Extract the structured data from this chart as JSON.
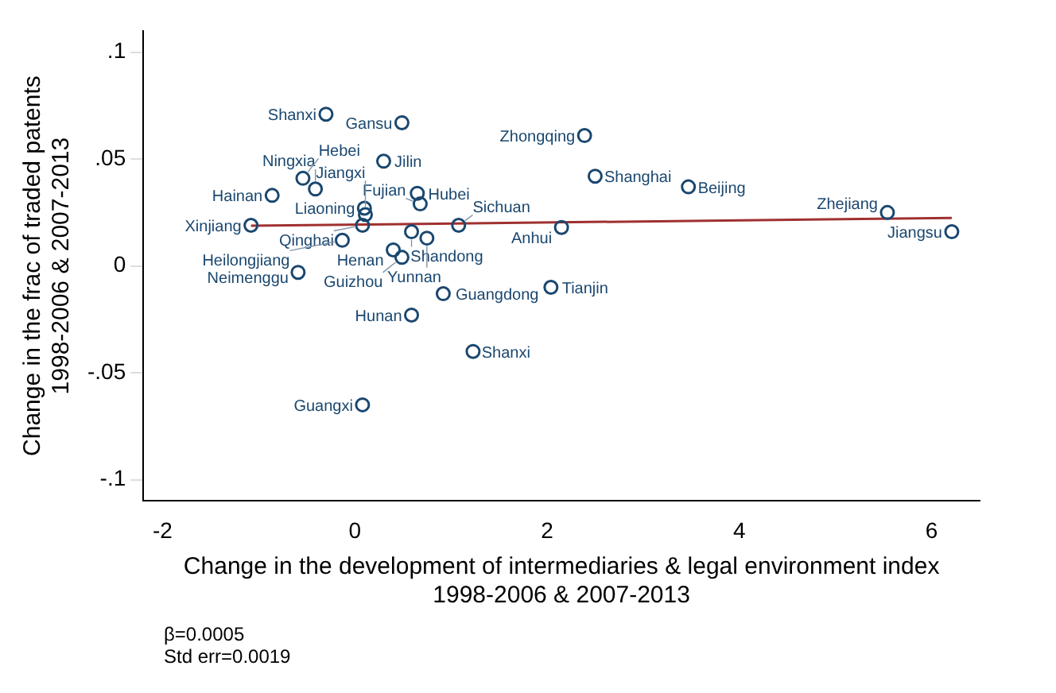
{
  "chart_data": {
    "type": "scatter",
    "xlabel": "Change in the development of intermediaries & legal environment index\n1998-2006 & 2007-2013",
    "ylabel": "Change in the frac of traded patents\n1998-2006 & 2007-2013",
    "xlim": [
      -2.2,
      6.5
    ],
    "xticks": [
      -2,
      0,
      2,
      4,
      6
    ],
    "ylim": [
      -0.11,
      0.11
    ],
    "yticks": [
      {
        "value": -0.1,
        "label": "-.1"
      },
      {
        "value": -0.05,
        "label": "-.05"
      },
      0,
      {
        "value": 0.05,
        "label": ".05"
      },
      {
        "value": 0.1,
        "label": ".1"
      }
    ],
    "grid": false,
    "legend": false,
    "series": [
      {
        "marker": "circle",
        "color": "#1a476f",
        "x": [
          -0.3,
          0.49,
          0.3,
          -0.54,
          -0.41,
          -0.86,
          0.65,
          0.68,
          0.1,
          0.11,
          -1.08,
          0.08,
          1.08,
          2.15,
          0.59,
          0.75,
          -0.13,
          0.4,
          0.49,
          -0.59,
          0.92,
          2.04,
          0.59,
          1.23,
          0.08,
          2.39,
          2.5,
          3.47,
          5.54,
          6.21
        ],
        "values": [
          0.071,
          0.067,
          0.049,
          0.041,
          0.036,
          0.033,
          0.034,
          0.029,
          0.027,
          0.024,
          0.019,
          0.019,
          0.019,
          0.018,
          0.016,
          0.013,
          0.012,
          0.0075,
          0.004,
          -0.003,
          -0.013,
          -0.01,
          -0.023,
          -0.04,
          -0.065,
          0.061,
          0.042,
          0.037,
          0.025,
          0.016
        ]
      },
      {
        "type": "line",
        "color": "#a03030",
        "x": [
          -1.08,
          6.21
        ],
        "values": [
          0.0188,
          0.0224
        ]
      }
    ],
    "annotations": [
      {
        "text": "Shanxi",
        "x": -0.3,
        "y": 0.071
      },
      {
        "text": "Gansu",
        "x": 0.49,
        "y": 0.067
      },
      {
        "text": "Jilin",
        "x": 0.3,
        "y": 0.049
      },
      {
        "text": "Hebei",
        "x": -0.54,
        "y": 0.041
      },
      {
        "text": "Ningxia",
        "x": -0.41,
        "y": 0.036
      },
      {
        "text": "Hainan",
        "x": -0.86,
        "y": 0.033
      },
      {
        "text": "Hubei",
        "x": 0.65,
        "y": 0.034
      },
      {
        "text": "Fujian",
        "x": 0.68,
        "y": 0.029
      },
      {
        "text": "Liaoning",
        "x": 0.1,
        "y": 0.027
      },
      {
        "text": "Jiangxi",
        "x": 0.11,
        "y": 0.024
      },
      {
        "text": "Xinjiang",
        "x": -1.08,
        "y": 0.019
      },
      {
        "text": "Qinghai",
        "x": 0.08,
        "y": 0.019
      },
      {
        "text": "Sichuan",
        "x": 1.08,
        "y": 0.019
      },
      {
        "text": "Anhui",
        "x": 2.15,
        "y": 0.018
      },
      {
        "text": "Shandong",
        "x": 0.59,
        "y": 0.016
      },
      {
        "text": "Yunnan",
        "x": 0.75,
        "y": 0.013
      },
      {
        "text": "Heilongjiang",
        "x": -0.13,
        "y": 0.012
      },
      {
        "text": "Henan",
        "x": 0.4,
        "y": 0.0075
      },
      {
        "text": "Guizhou",
        "x": 0.49,
        "y": 0.004
      },
      {
        "text": "Neimenggu",
        "x": -0.59,
        "y": -0.003
      },
      {
        "text": "Guangdong",
        "x": 0.92,
        "y": -0.013
      },
      {
        "text": "Tianjin",
        "x": 2.04,
        "y": -0.01
      },
      {
        "text": "Hunan",
        "x": 0.59,
        "y": -0.023
      },
      {
        "text": "Shanxi",
        "x": 1.23,
        "y": -0.04
      },
      {
        "text": "Guangxi",
        "x": 0.08,
        "y": -0.065
      },
      {
        "text": "Zhongqing",
        "x": 2.39,
        "y": 0.061
      },
      {
        "text": "Shanghai",
        "x": 2.5,
        "y": 0.042
      },
      {
        "text": "Beijing",
        "x": 3.47,
        "y": 0.037
      },
      {
        "text": "Zhejiang",
        "x": 5.54,
        "y": 0.025
      },
      {
        "text": "Jiangsu",
        "x": 6.21,
        "y": 0.016
      },
      "β=0.0005",
      "Std err=0.0019"
    ]
  }
}
